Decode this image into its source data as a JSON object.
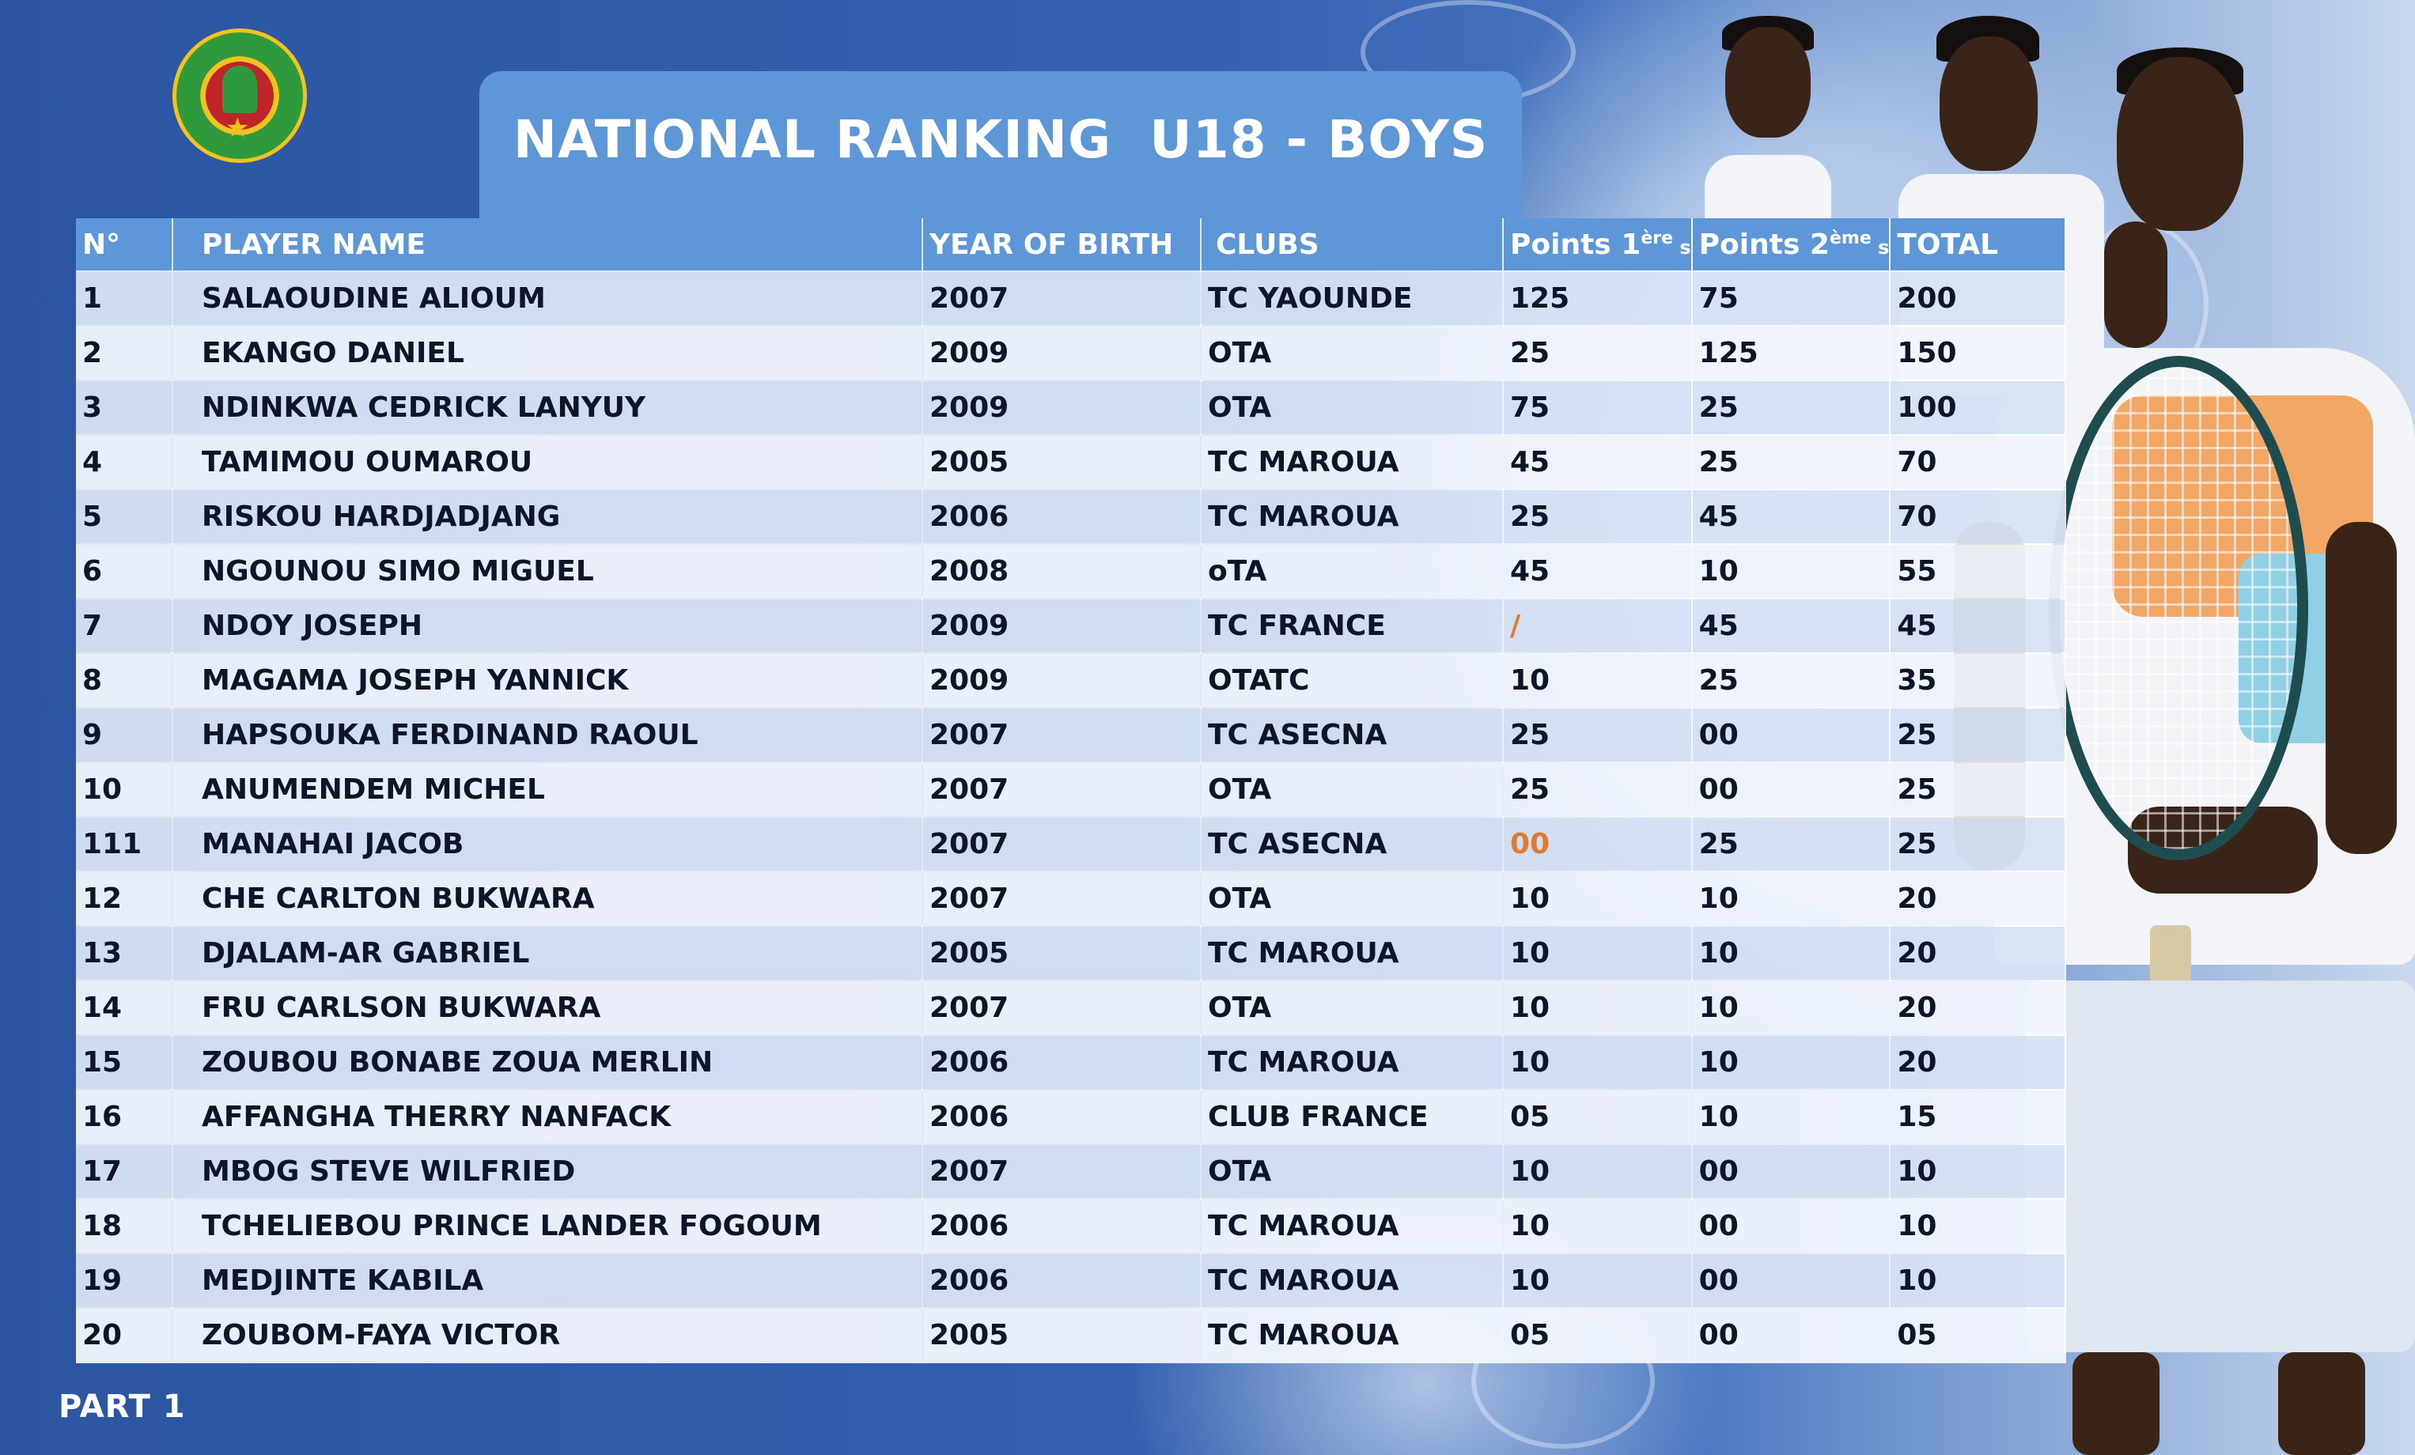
{
  "title": "NATIONAL RANKING  U18 - BOYS",
  "footer": "PART 1",
  "table": {
    "headers": {
      "no": "N°",
      "player": "PLAYER NAME",
      "year": "YEAR OF BIRTH",
      "club": "CLUBS",
      "p1_base": "Points 1",
      "p1_sup": "ère",
      "p1_end": " s",
      "p2_base": "Points 2",
      "p2_sup": "ème",
      "p2_end": " s",
      "total": "TOTAL"
    },
    "rows": [
      {
        "no": "1",
        "name": "SALAOUDINE ALIOUM",
        "year": "2007",
        "club": "TC YAOUNDE",
        "p1": "125",
        "p2": "75",
        "total": "200"
      },
      {
        "no": "2",
        "name": "EKANGO DANIEL",
        "year": "2009",
        "club": "OTA",
        "p1": "25",
        "p2": "125",
        "total": "150"
      },
      {
        "no": "3",
        "name": "NDINKWA CEDRICK LANYUY",
        "year": "2009",
        "club": "OTA",
        "p1": "75",
        "p2": "25",
        "total": "100"
      },
      {
        "no": "4",
        "name": "TAMIMOU OUMAROU",
        "year": "2005",
        "club": "TC MAROUA",
        "p1": "45",
        "p2": "25",
        "total": "70"
      },
      {
        "no": "5",
        "name": "RISKOU HARDJADJANG",
        "year": "2006",
        "club": "TC MAROUA",
        "p1": "25",
        "p2": "45",
        "total": "70"
      },
      {
        "no": "6",
        "name": "NGOUNOU SIMO MIGUEL",
        "year": "2008",
        "club": "oTA",
        "p1": "45",
        "p2": "10",
        "total": "55"
      },
      {
        "no": "7",
        "name": "NDOY JOSEPH",
        "year": "2009",
        "club": "TC FRANCE",
        "p1": "/",
        "p2": "45",
        "total": "45"
      },
      {
        "no": "8",
        "name": "MAGAMA JOSEPH YANNICK",
        "year": "2009",
        "club": "OTATC",
        "p1": "10",
        "p2": "25",
        "total": "35"
      },
      {
        "no": "9",
        "name": "HAPSOUKA FERDINAND RAOUL",
        "year": "2007",
        "club": "TC ASECNA",
        "p1": "25",
        "p2": "00",
        "total": "25"
      },
      {
        "no": "10",
        "name": "ANUMENDEM MICHEL",
        "year": "2007",
        "club": "OTA",
        "p1": "25",
        "p2": "00",
        "total": "25"
      },
      {
        "no": "111",
        "name": "MANAHAI JACOB",
        "year": "2007",
        "club": "TC ASECNA",
        "p1": "00",
        "p2": "25",
        "total": "25"
      },
      {
        "no": "12",
        "name": "CHE CARLTON BUKWARA",
        "year": "2007",
        "club": "OTA",
        "p1": "10",
        "p2": "10",
        "total": "20"
      },
      {
        "no": "13",
        "name": "DJALAM-AR GABRIEL",
        "year": "2005",
        "club": "TC MAROUA",
        "p1": "10",
        "p2": "10",
        "total": "20"
      },
      {
        "no": "14",
        "name": "FRU CARLSON BUKWARA",
        "year": "2007",
        "club": "OTA",
        "p1": "10",
        "p2": "10",
        "total": "20"
      },
      {
        "no": "15",
        "name": "ZOUBOU BONABE ZOUA MERLIN",
        "year": "2006",
        "club": "TC MAROUA",
        "p1": "10",
        "p2": "10",
        "total": "20"
      },
      {
        "no": "16",
        "name": "AFFANGHA THERRY NANFACK",
        "year": "2006",
        "club": "CLUB FRANCE",
        "p1": "05",
        "p2": "10",
        "total": "15"
      },
      {
        "no": "17",
        "name": "MBOG STEVE WILFRIED",
        "year": "2007",
        "club": "OTA",
        "p1": "10",
        "p2": "00",
        "total": "10"
      },
      {
        "no": "18",
        "name": "TCHELIEBOU PRINCE LANDER FOGOUM",
        "year": "2006",
        "club": "TC MAROUA",
        "p1": "10",
        "p2": "00",
        "total": "10"
      },
      {
        "no": "19",
        "name": "MEDJINTE KABILA",
        "year": "2006",
        "club": "TC MAROUA",
        "p1": "10",
        "p2": "00",
        "total": "10"
      },
      {
        "no": "20",
        "name": "ZOUBOM-FAYA VICTOR",
        "year": "2005",
        "club": "TC MAROUA",
        "p1": "05",
        "p2": "00",
        "total": "05"
      }
    ]
  },
  "colors": {
    "background": "#2f5aa5",
    "header": "#5d97d8",
    "row_odd": "#d6e2f4",
    "row_even": "#f0f5fc",
    "highlight": "#e07a2e"
  },
  "highlighted_cells": [
    {
      "row": 7,
      "col": "p1"
    },
    {
      "row": 11,
      "col": "p1"
    }
  ]
}
